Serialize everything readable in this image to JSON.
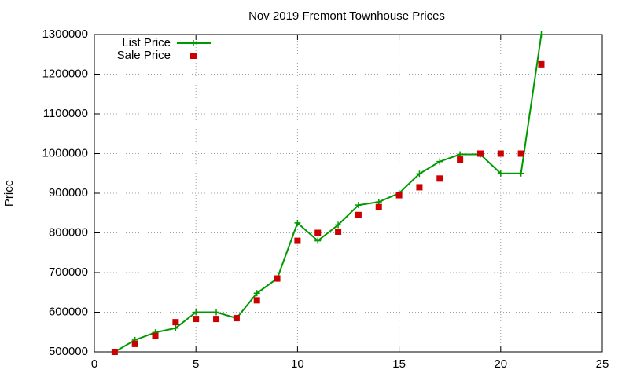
{
  "chart_data": {
    "type": "line",
    "title": "Nov 2019 Fremont Townhouse Prices",
    "y_label": "Price",
    "xlim": [
      0,
      25
    ],
    "xticks": [
      0,
      5,
      10,
      15,
      20,
      25
    ],
    "ylim": [
      500000,
      1300000
    ],
    "yticks": [
      500000,
      600000,
      700000,
      800000,
      900000,
      1000000,
      1100000,
      1200000,
      1300000
    ],
    "grid": true,
    "legend": "top-left",
    "x": [
      1,
      2,
      3,
      4,
      5,
      6,
      7,
      8,
      9,
      10,
      11,
      12,
      13,
      14,
      15,
      16,
      17,
      18,
      19,
      20,
      21,
      22
    ],
    "series": [
      {
        "name": "List Price",
        "color": "#009900",
        "mode": "lines+points",
        "values": [
          500000,
          530000,
          549000,
          560000,
          600000,
          600000,
          585000,
          648000,
          685000,
          825000,
          780000,
          820000,
          870000,
          878000,
          900000,
          949000,
          980000,
          998000,
          998000,
          950000,
          950000,
          1300000
        ]
      },
      {
        "name": "Sale Price",
        "color": "#cc0000",
        "mode": "points",
        "values": [
          500000,
          520000,
          540000,
          575000,
          583000,
          583000,
          585000,
          630000,
          685000,
          780000,
          800000,
          803000,
          845000,
          865000,
          895000,
          915000,
          937000,
          985000,
          1000000,
          1000000,
          1000000,
          1225000
        ]
      }
    ]
  }
}
